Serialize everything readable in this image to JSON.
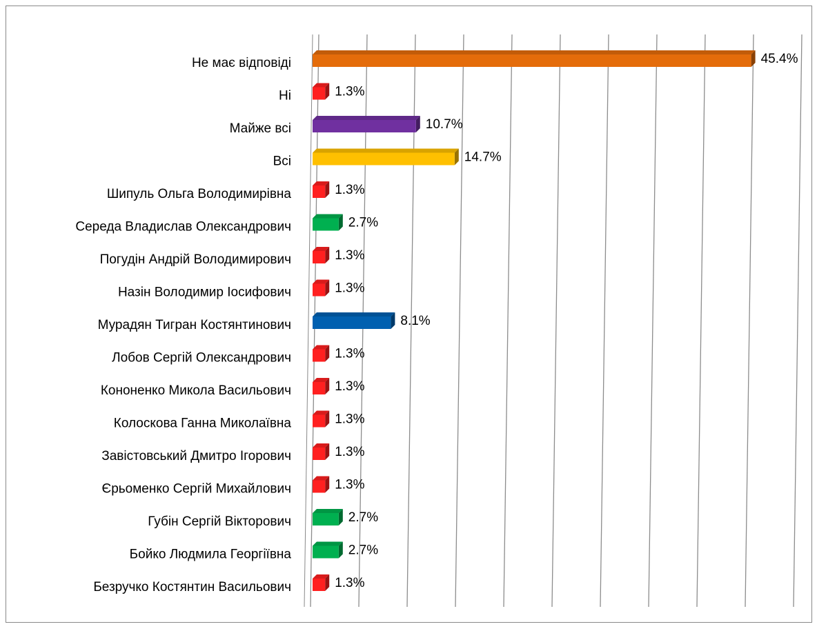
{
  "chart_data": {
    "type": "bar3d_horizontal",
    "categories": [
      "Не має відповіді",
      "Ні",
      "Майже всі",
      "Всі",
      "Шипуль Ольга Володимирівна",
      "Середа Владислав Олександрович",
      "Погудін Андрій Володимирович",
      "Назін Володимир Іосифович",
      "Мурадян Тигран Костянтинович",
      "Лобов Сергій Олександрович",
      "Кононенко Микола Васильович",
      "Колоскова Ганна Миколаївна",
      "Завістовський Дмитро Ігорович",
      "Єрьоменко Сергій Михайлович",
      "Губін Сергій Вікторович",
      "Бойко Людмила Георгіївна",
      "Безручко Костянтин Васильович"
    ],
    "values": [
      45.4,
      1.3,
      10.7,
      14.7,
      1.3,
      2.7,
      1.3,
      1.3,
      8.1,
      1.3,
      1.3,
      1.3,
      1.3,
      1.3,
      2.7,
      2.7,
      1.3
    ],
    "value_labels": [
      "45.4%",
      "1.3%",
      "10.7%",
      "14.7%",
      "1.3%",
      "2.7%",
      "1.3%",
      "1.3%",
      "8.1%",
      "1.3%",
      "1.3%",
      "1.3%",
      "1.3%",
      "1.3%",
      "2.7%",
      "2.7%",
      "1.3%"
    ],
    "colors": [
      "#e46c0a",
      "#ff2020",
      "#7030a0",
      "#ffc000",
      "#ff2020",
      "#00b050",
      "#ff2020",
      "#ff2020",
      "#0060b0",
      "#ff2020",
      "#ff2020",
      "#ff2020",
      "#ff2020",
      "#ff2020",
      "#00b050",
      "#00b050",
      "#ff2020"
    ],
    "xlim": [
      0,
      50
    ],
    "xticks": [
      0,
      5,
      10,
      15,
      20,
      25,
      30,
      35,
      40,
      45,
      50
    ],
    "grid": true
  }
}
